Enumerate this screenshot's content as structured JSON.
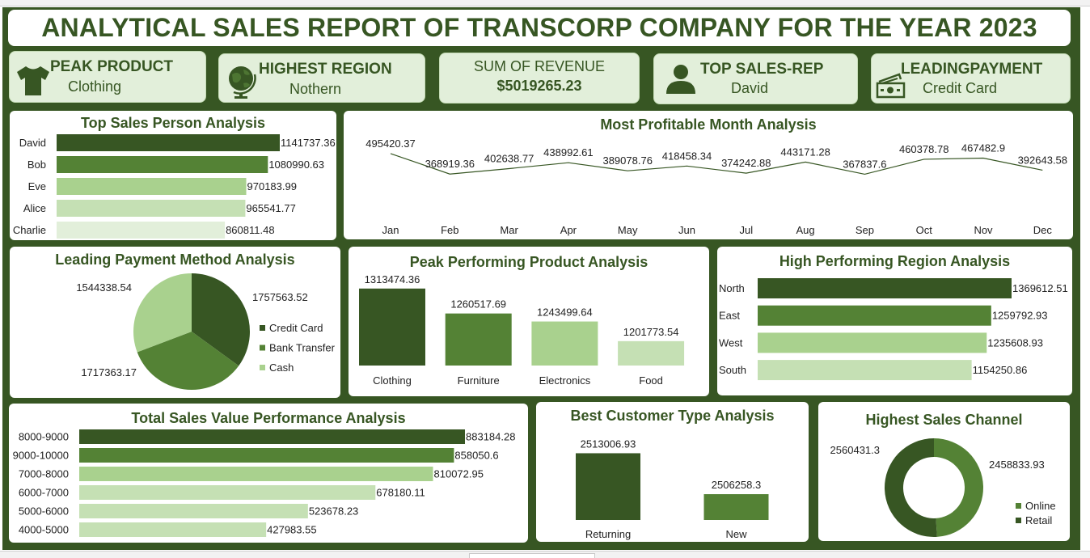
{
  "title": "ANALYTICAL SALES REPORT OF TRANSCORP COMPANY FOR THE YEAR 2023",
  "kpis": {
    "peak_product": {
      "title": "PEAK PRODUCT",
      "value": "Clothing",
      "icon": "tshirt-icon"
    },
    "highest_region": {
      "title": "HIGHEST REGION",
      "value": "Nothern",
      "icon": "globe-icon"
    },
    "sum_revenue": {
      "title": "SUM OF REVENUE",
      "value": "$5019265.23"
    },
    "top_rep": {
      "title": "TOP SALES-REP",
      "value": "David",
      "icon": "person-icon"
    },
    "leading_payment": {
      "title": "LEADINGPAYMENT",
      "value": "Credit Card",
      "icon": "cash-icon"
    }
  },
  "colors": {
    "dark": "#375623",
    "mid": "#548235",
    "light": "#a9d18e",
    "lighter": "#c5e0b4",
    "lightest": "#e2efda"
  },
  "chart_data": [
    {
      "id": "sales_person",
      "type": "bar",
      "orientation": "horizontal",
      "title": "Top Sales Person Analysis",
      "categories": [
        "David",
        "Bob",
        "Eve",
        "Alice",
        "Charlie"
      ],
      "values": [
        1141737.36,
        1080990.63,
        970183.99,
        965541.77,
        860811.48
      ],
      "labels": [
        "1141737.36",
        "1080990.63",
        "970183.99",
        "965541.77",
        "860811.48"
      ]
    },
    {
      "id": "month",
      "type": "line",
      "title": "Most Profitable Month Analysis",
      "categories": [
        "Jan",
        "Feb",
        "Mar",
        "Apr",
        "May",
        "Jun",
        "Jul",
        "Aug",
        "Sep",
        "Oct",
        "Nov",
        "Dec"
      ],
      "values": [
        495420.37,
        368919.36,
        402638.77,
        438992.61,
        389078.76,
        418458.34,
        374242.88,
        443171.28,
        367837.6,
        460378.78,
        467482.9,
        392643.58
      ],
      "labels": [
        "495420.37",
        "368919.36",
        "402638.77",
        "438992.61",
        "389078.76",
        "418458.34",
        "374242.88",
        "443171.28",
        "367837.6",
        "460378.78",
        "467482.9",
        "392643.58"
      ]
    },
    {
      "id": "payment",
      "type": "pie",
      "title": "Leading Payment Method Analysis",
      "categories": [
        "Credit Card",
        "Bank Transfer",
        "Cash"
      ],
      "values": [
        1757563.52,
        1717363.17,
        1544338.54
      ],
      "labels": [
        "1757563.52",
        "1717363.17",
        "1544338.54"
      ],
      "legend": "right"
    },
    {
      "id": "product",
      "type": "bar",
      "orientation": "vertical",
      "title": "Peak Performing Product Analysis",
      "categories": [
        "Clothing",
        "Furniture",
        "Electronics",
        "Food"
      ],
      "values": [
        1313474.36,
        1260517.69,
        1243499.64,
        1201773.54
      ],
      "labels": [
        "1313474.36",
        "1260517.69",
        "1243499.64",
        "1201773.54"
      ]
    },
    {
      "id": "region",
      "type": "bar",
      "orientation": "horizontal",
      "title": "High Performing Region Analysis",
      "categories": [
        "North",
        "East",
        "West",
        "South"
      ],
      "values": [
        1369612.51,
        1259792.93,
        1235608.93,
        1154250.86
      ],
      "labels": [
        "1369612.51",
        "1259792.93",
        "1235608.93",
        "1154250.86"
      ]
    },
    {
      "id": "sales_value",
      "type": "bar",
      "orientation": "horizontal",
      "title": "Total Sales Value Performance Analysis",
      "categories": [
        "8000-9000",
        "9000-10000",
        "7000-8000",
        "6000-7000",
        "5000-6000",
        "4000-5000"
      ],
      "values": [
        883184.28,
        858050.6,
        810072.95,
        678180.11,
        523678.23,
        427983.55
      ],
      "labels": [
        "883184.28",
        "858050.6",
        "810072.95",
        "678180.11",
        "523678.23",
        "427983.55"
      ]
    },
    {
      "id": "customer",
      "type": "bar",
      "orientation": "vertical",
      "title": "Best Customer Type Analysis",
      "categories": [
        "Returning",
        "New"
      ],
      "values": [
        2513006.93,
        2506258.3
      ],
      "labels": [
        "2513006.93",
        "2506258.3"
      ]
    },
    {
      "id": "channel",
      "type": "pie",
      "subtype": "doughnut",
      "title": "Highest Sales Channel",
      "categories": [
        "Online",
        "Retail"
      ],
      "values": [
        2458833.93,
        2560431.3
      ],
      "labels": [
        "2458833.93",
        "2560431.3"
      ],
      "legend": "bottom-right"
    }
  ]
}
